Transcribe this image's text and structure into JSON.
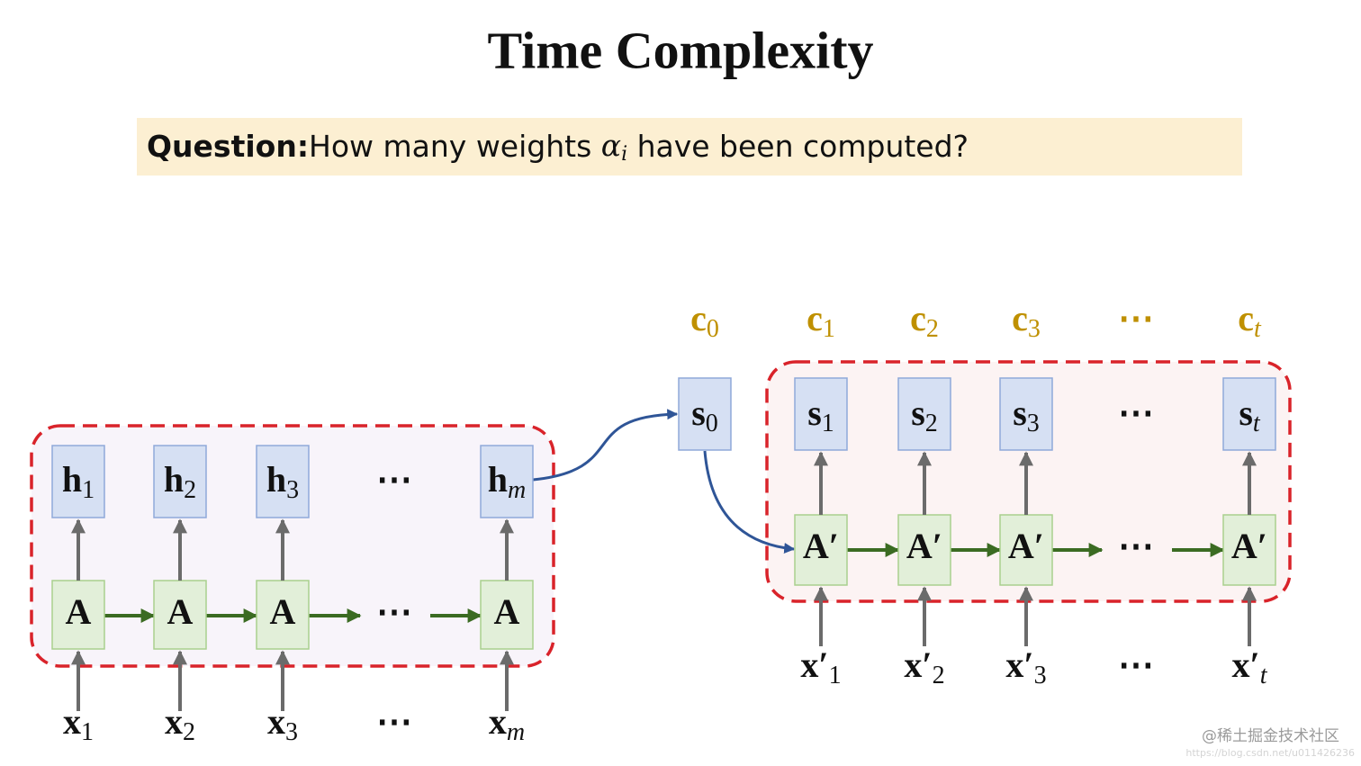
{
  "title": "Time Complexity",
  "question": {
    "label": "Question:",
    "text_before": "How many weights ",
    "symbol": "α",
    "symbol_sub": "i",
    "text_after": " have been computed?"
  },
  "encoder": {
    "hidden": [
      {
        "base": "h",
        "sub": "1"
      },
      {
        "base": "h",
        "sub": "2"
      },
      {
        "base": "h",
        "sub": "3"
      },
      "⋯",
      {
        "base": "h",
        "sub": "m"
      }
    ],
    "cells": [
      "A",
      "A",
      "A",
      "⋯",
      "A"
    ],
    "inputs": [
      {
        "base": "x",
        "sub": "1"
      },
      {
        "base": "x",
        "sub": "2"
      },
      {
        "base": "x",
        "sub": "3"
      },
      "⋯",
      {
        "base": "x",
        "sub": "m"
      }
    ]
  },
  "decoder": {
    "contexts": [
      {
        "base": "c",
        "sub": "0"
      },
      {
        "base": "c",
        "sub": "1"
      },
      {
        "base": "c",
        "sub": "2"
      },
      {
        "base": "c",
        "sub": "3"
      },
      "⋯",
      {
        "base": "c",
        "sub": "t"
      }
    ],
    "states": [
      {
        "base": "s",
        "sub": "0"
      },
      {
        "base": "s",
        "sub": "1"
      },
      {
        "base": "s",
        "sub": "2"
      },
      {
        "base": "s",
        "sub": "3"
      },
      "⋯",
      {
        "base": "s",
        "sub": "t"
      }
    ],
    "cells": [
      "A′",
      "A′",
      "A′",
      "⋯",
      "A′"
    ],
    "inputs": [
      {
        "base": "x′",
        "sub": "1"
      },
      {
        "base": "x′",
        "sub": "2"
      },
      {
        "base": "x′",
        "sub": "3"
      },
      "⋯",
      {
        "base": "x′",
        "sub": "t"
      }
    ]
  },
  "watermark": {
    "line1": "@稀土掘金技术社区",
    "line2": "https://blog.csdn.net/u011426236"
  }
}
